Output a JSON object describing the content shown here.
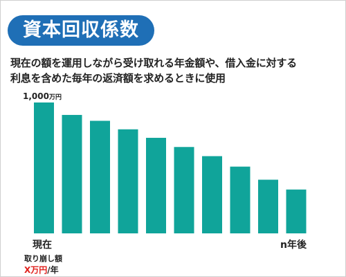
{
  "header": {
    "title": "資本回収係数"
  },
  "description": {
    "line1": "現在の額を運用しながら受け取れる年金額や、借入金に対する",
    "line2": "利息を含めた毎年の返済額を求めるときに使用"
  },
  "annotations": {
    "y_max_number": "1,000",
    "y_max_unit": "万円",
    "withdrawal_label": "取り崩し額",
    "withdrawal_amount": "X万円",
    "withdrawal_per": "/年"
  },
  "colors": {
    "bar": "#10a49a",
    "pill": "#1f6fb6",
    "accent_red": "#e0201c"
  },
  "chart_data": {
    "type": "bar",
    "categories": [
      "現在",
      "",
      "",
      "",
      "",
      "",
      "",
      "",
      "",
      "n年後"
    ],
    "values": [
      1000,
      905,
      860,
      795,
      730,
      660,
      590,
      510,
      410,
      335
    ],
    "ylim": [
      0,
      1000
    ],
    "y_unit": "万円",
    "grid": false,
    "legend": "none"
  }
}
